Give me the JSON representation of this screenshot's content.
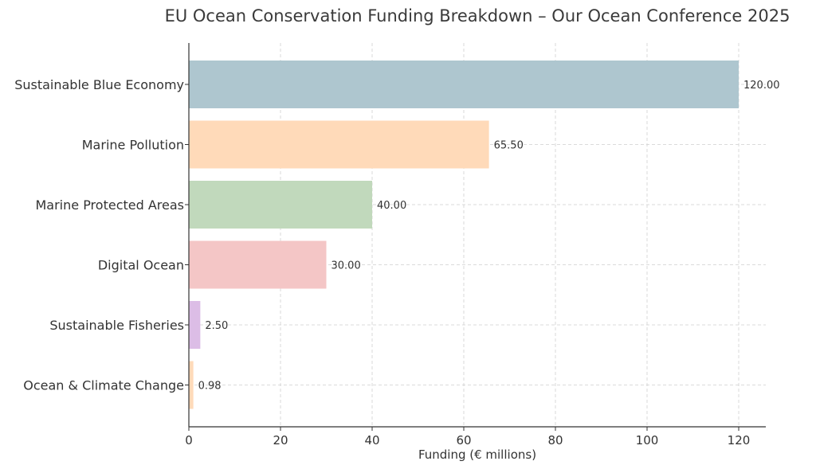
{
  "chart_data": {
    "type": "bar",
    "orientation": "horizontal",
    "title": "EU Ocean Conservation Funding Breakdown – Our Ocean Conference 2025",
    "xlabel": "Funding (€ millions)",
    "ylabel": "",
    "xlim": [
      0,
      126
    ],
    "x_ticks": [
      0,
      20,
      40,
      60,
      80,
      100,
      120
    ],
    "grid": true,
    "categories": [
      "Sustainable Blue Economy",
      "Marine Pollution",
      "Marine Protected Areas",
      "Digital Ocean",
      "Sustainable Fisheries",
      "Ocean & Climate Change"
    ],
    "values": [
      120.0,
      65.5,
      40.0,
      30.0,
      2.5,
      0.98
    ],
    "value_labels": [
      "120.00",
      "65.50",
      "40.00",
      "30.00",
      "2.50",
      "0.98"
    ],
    "colors": [
      "#aec6cf",
      "#ffdab9",
      "#c1d9bc",
      "#f4c6c6",
      "#dcbde6",
      "#ffdab9"
    ]
  }
}
